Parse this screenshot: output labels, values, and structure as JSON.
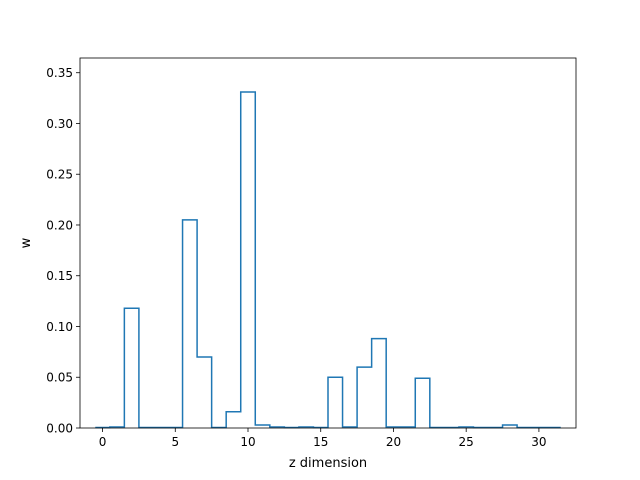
{
  "chart_data": {
    "type": "line",
    "style": "step",
    "title": "",
    "xlabel": "z dimension",
    "ylabel": "w",
    "xlim": [
      -1.55,
      32.55
    ],
    "ylim": [
      0,
      0.3645
    ],
    "xticks": [
      0,
      5,
      10,
      15,
      20,
      25,
      30
    ],
    "yticks": [
      0.0,
      0.05,
      0.1,
      0.15,
      0.2,
      0.25,
      0.3,
      0.35
    ],
    "ytick_labels": [
      "0.00",
      "0.05",
      "0.10",
      "0.15",
      "0.20",
      "0.25",
      "0.30",
      "0.35"
    ],
    "grid": false,
    "series": [
      {
        "color": "#1f77b4",
        "x": [
          0,
          1,
          2,
          3,
          4,
          5,
          6,
          7,
          8,
          9,
          10,
          11,
          12,
          13,
          14,
          15,
          16,
          17,
          18,
          19,
          20,
          21,
          22,
          23,
          24,
          25,
          26,
          27,
          28,
          29,
          30,
          31
        ],
        "values": [
          0.0005,
          0.001,
          0.118,
          0.0005,
          0.0005,
          0.0005,
          0.205,
          0.07,
          0.0005,
          0.016,
          0.331,
          0.003,
          0.001,
          0.0005,
          0.001,
          0.0005,
          0.05,
          0.001,
          0.06,
          0.088,
          0.001,
          0.001,
          0.049,
          0.0005,
          0.0005,
          0.001,
          0.0005,
          0.0005,
          0.003,
          0.0005,
          0.0005,
          0.0005
        ]
      }
    ]
  }
}
